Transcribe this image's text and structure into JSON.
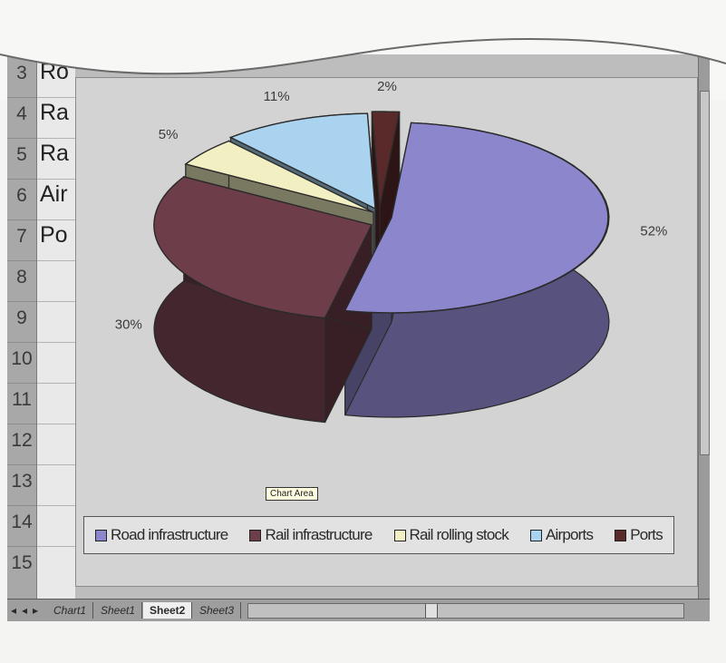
{
  "spreadsheet": {
    "row_numbers": [
      "3",
      "4",
      "5",
      "6",
      "7",
      "8",
      "9",
      "10",
      "11",
      "12",
      "13",
      "14",
      "15"
    ],
    "cells": [
      "Ro",
      "Ra",
      "Ra",
      "Air",
      "Po"
    ]
  },
  "chart_data": {
    "type": "pie",
    "style": "3d-exploded",
    "categories": [
      "Road infrastructure",
      "Rail infrastructure",
      "Rail rolling stock",
      "Airports",
      "Ports"
    ],
    "values": [
      52,
      30,
      5,
      11,
      2
    ],
    "data_labels": [
      "52%",
      "30%",
      "5%",
      "11%",
      "2%"
    ],
    "colors": [
      "#8c86cc",
      "#6e3d4a",
      "#f2efc2",
      "#a9d3ee",
      "#5a2a2a"
    ],
    "legend_position": "bottom",
    "title": ""
  },
  "tooltip": "Chart Area",
  "sheet_tabs": [
    "Chart1",
    "Sheet1",
    "Sheet2",
    "Sheet3"
  ],
  "active_tab": "Sheet2"
}
